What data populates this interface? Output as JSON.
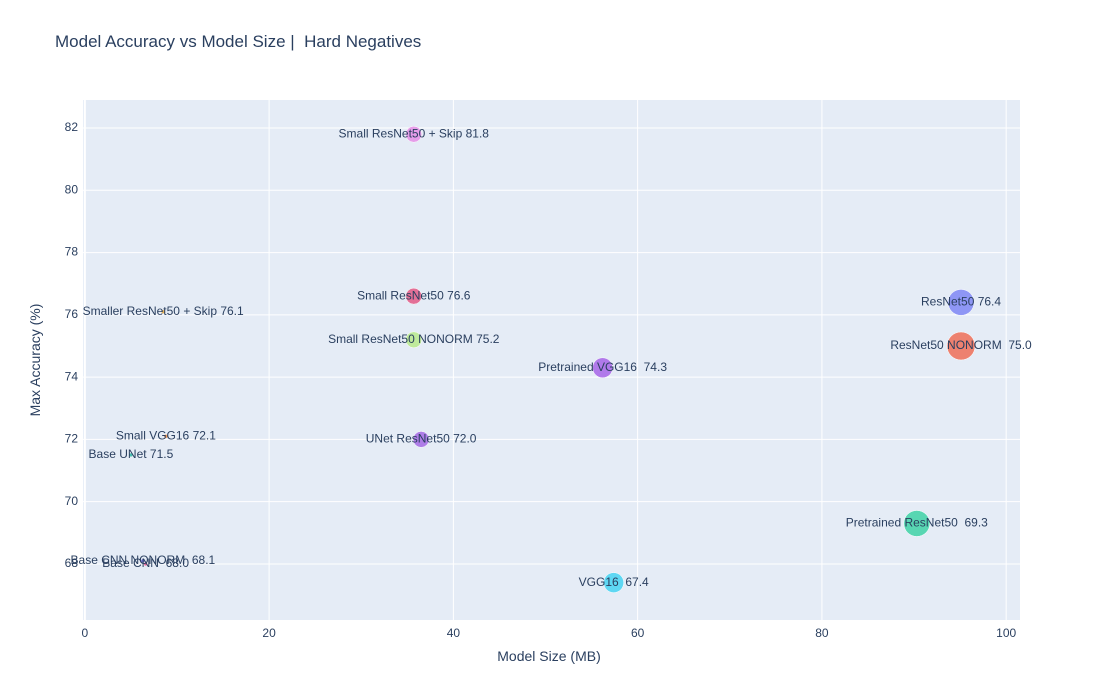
{
  "chart_data": {
    "type": "scatter",
    "title": "Model Accuracy vs Model Size |  Hard Negatives",
    "xlabel": "Model Size (MB)",
    "ylabel": "Max Accuracy (%)",
    "xlim": [
      -0.2,
      101.5
    ],
    "ylim": [
      66.2,
      82.9
    ],
    "x_ticks": [
      0,
      20,
      40,
      60,
      80,
      100
    ],
    "y_ticks": [
      68,
      70,
      72,
      74,
      76,
      78,
      80,
      82
    ],
    "grid": true,
    "legend": "none",
    "background": "#e5ecf6",
    "points": [
      {
        "label": "Small ResNet50 + Skip 81.8",
        "x": 35.7,
        "y": 81.8,
        "size": 8,
        "color": "#e58fe6"
      },
      {
        "label": "Small ResNet50 76.6",
        "x": 35.7,
        "y": 76.6,
        "size": 8,
        "color": "#e35a86"
      },
      {
        "label": "Smaller ResNet50 + Skip 76.1",
        "x": 8.5,
        "y": 76.1,
        "size": 2,
        "color": "#e3a63c"
      },
      {
        "label": "ResNet50 76.4",
        "x": 95.1,
        "y": 76.4,
        "size": 13,
        "color": "#7f87f5"
      },
      {
        "label": "ResNet50 NONORM  75.0",
        "x": 95.1,
        "y": 75.0,
        "size": 14,
        "color": "#ee6e57"
      },
      {
        "label": "Small ResNet50 NONORM 75.2",
        "x": 35.7,
        "y": 75.2,
        "size": 8,
        "color": "#b8ea8c"
      },
      {
        "label": "Pretrained VGG16  74.3",
        "x": 56.2,
        "y": 74.3,
        "size": 10,
        "color": "#a765e8"
      },
      {
        "label": "Small VGG16 72.1",
        "x": 8.8,
        "y": 72.1,
        "size": 2,
        "color": "#ef8a3c"
      },
      {
        "label": "UNet ResNet50 72.0",
        "x": 36.5,
        "y": 72.0,
        "size": 8,
        "color": "#a56ae4"
      },
      {
        "label": "Base UNet 71.5",
        "x": 5.0,
        "y": 71.5,
        "size": 2,
        "color": "#2cb5a2"
      },
      {
        "label": "Pretrained ResNet50  69.3",
        "x": 90.3,
        "y": 69.3,
        "size": 13,
        "color": "#3fd2a6"
      },
      {
        "label": "Base CNN NONORM  68.1",
        "x": 6.3,
        "y": 68.1,
        "size": 2,
        "color": "#5a5ad6"
      },
      {
        "label": "Base CNN  68.0",
        "x": 6.6,
        "y": 68.0,
        "size": 2,
        "color": "#e0508e"
      },
      {
        "label": "VGG16  67.4",
        "x": 57.4,
        "y": 67.4,
        "size": 10,
        "color": "#46d4f2"
      }
    ]
  }
}
